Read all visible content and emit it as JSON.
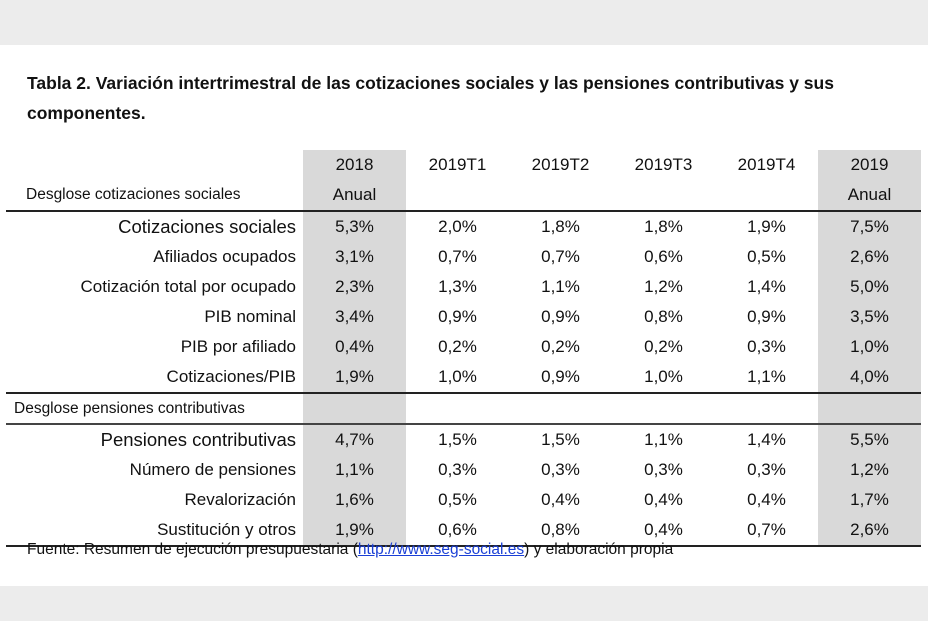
{
  "title": "Tabla 2. Variación intertrimestral de las cotizaciones sociales y las pensiones contributivas y sus componentes.",
  "columns": [
    {
      "line1": "2018",
      "line2": "Anual"
    },
    {
      "line1": "2019T1",
      "line2": ""
    },
    {
      "line1": "2019T2",
      "line2": ""
    },
    {
      "line1": "2019T3",
      "line2": ""
    },
    {
      "line1": "2019T4",
      "line2": ""
    },
    {
      "line1": "2019",
      "line2": "Anual"
    }
  ],
  "section1": {
    "label": "Desglose cotizaciones sociales",
    "rows": [
      {
        "label": "Cotizaciones sociales",
        "values": [
          "5,3%",
          "2,0%",
          "1,8%",
          "1,8%",
          "1,9%",
          "7,5%"
        ]
      },
      {
        "label": "Afiliados ocupados",
        "values": [
          "3,1%",
          "0,7%",
          "0,7%",
          "0,6%",
          "0,5%",
          "2,6%"
        ]
      },
      {
        "label": "Cotización total por ocupado",
        "values": [
          "2,3%",
          "1,3%",
          "1,1%",
          "1,2%",
          "1,4%",
          "5,0%"
        ]
      },
      {
        "label": "PIB nominal",
        "values": [
          "3,4%",
          "0,9%",
          "0,9%",
          "0,8%",
          "0,9%",
          "3,5%"
        ]
      },
      {
        "label": "PIB por afiliado",
        "values": [
          "0,4%",
          "0,2%",
          "0,2%",
          "0,2%",
          "0,3%",
          "1,0%"
        ]
      },
      {
        "label": "Cotizaciones/PIB",
        "values": [
          "1,9%",
          "1,0%",
          "0,9%",
          "1,0%",
          "1,1%",
          "4,0%"
        ]
      }
    ]
  },
  "section2": {
    "label": "Desglose pensiones contributivas",
    "rows": [
      {
        "label": "Pensiones contributivas",
        "values": [
          "4,7%",
          "1,5%",
          "1,5%",
          "1,1%",
          "1,4%",
          "5,5%"
        ]
      },
      {
        "label": "Número de pensiones",
        "values": [
          "1,1%",
          "0,3%",
          "0,3%",
          "0,3%",
          "0,3%",
          "1,2%"
        ]
      },
      {
        "label": "Revalorización",
        "values": [
          "1,6%",
          "0,5%",
          "0,4%",
          "0,4%",
          "0,4%",
          "1,7%"
        ]
      },
      {
        "label": "Sustitución y otros",
        "values": [
          "1,9%",
          "0,6%",
          "0,8%",
          "0,4%",
          "0,7%",
          "2,6%"
        ]
      }
    ]
  },
  "footer": {
    "prefix": "Fuente: Resumen de ejecución presupuestaria (",
    "link": "http://www.seg-social.es",
    "suffix": ") y elaboración propia"
  },
  "colors": {
    "highlight_column": "#d9d9d9",
    "link": "#1a3fd6"
  }
}
